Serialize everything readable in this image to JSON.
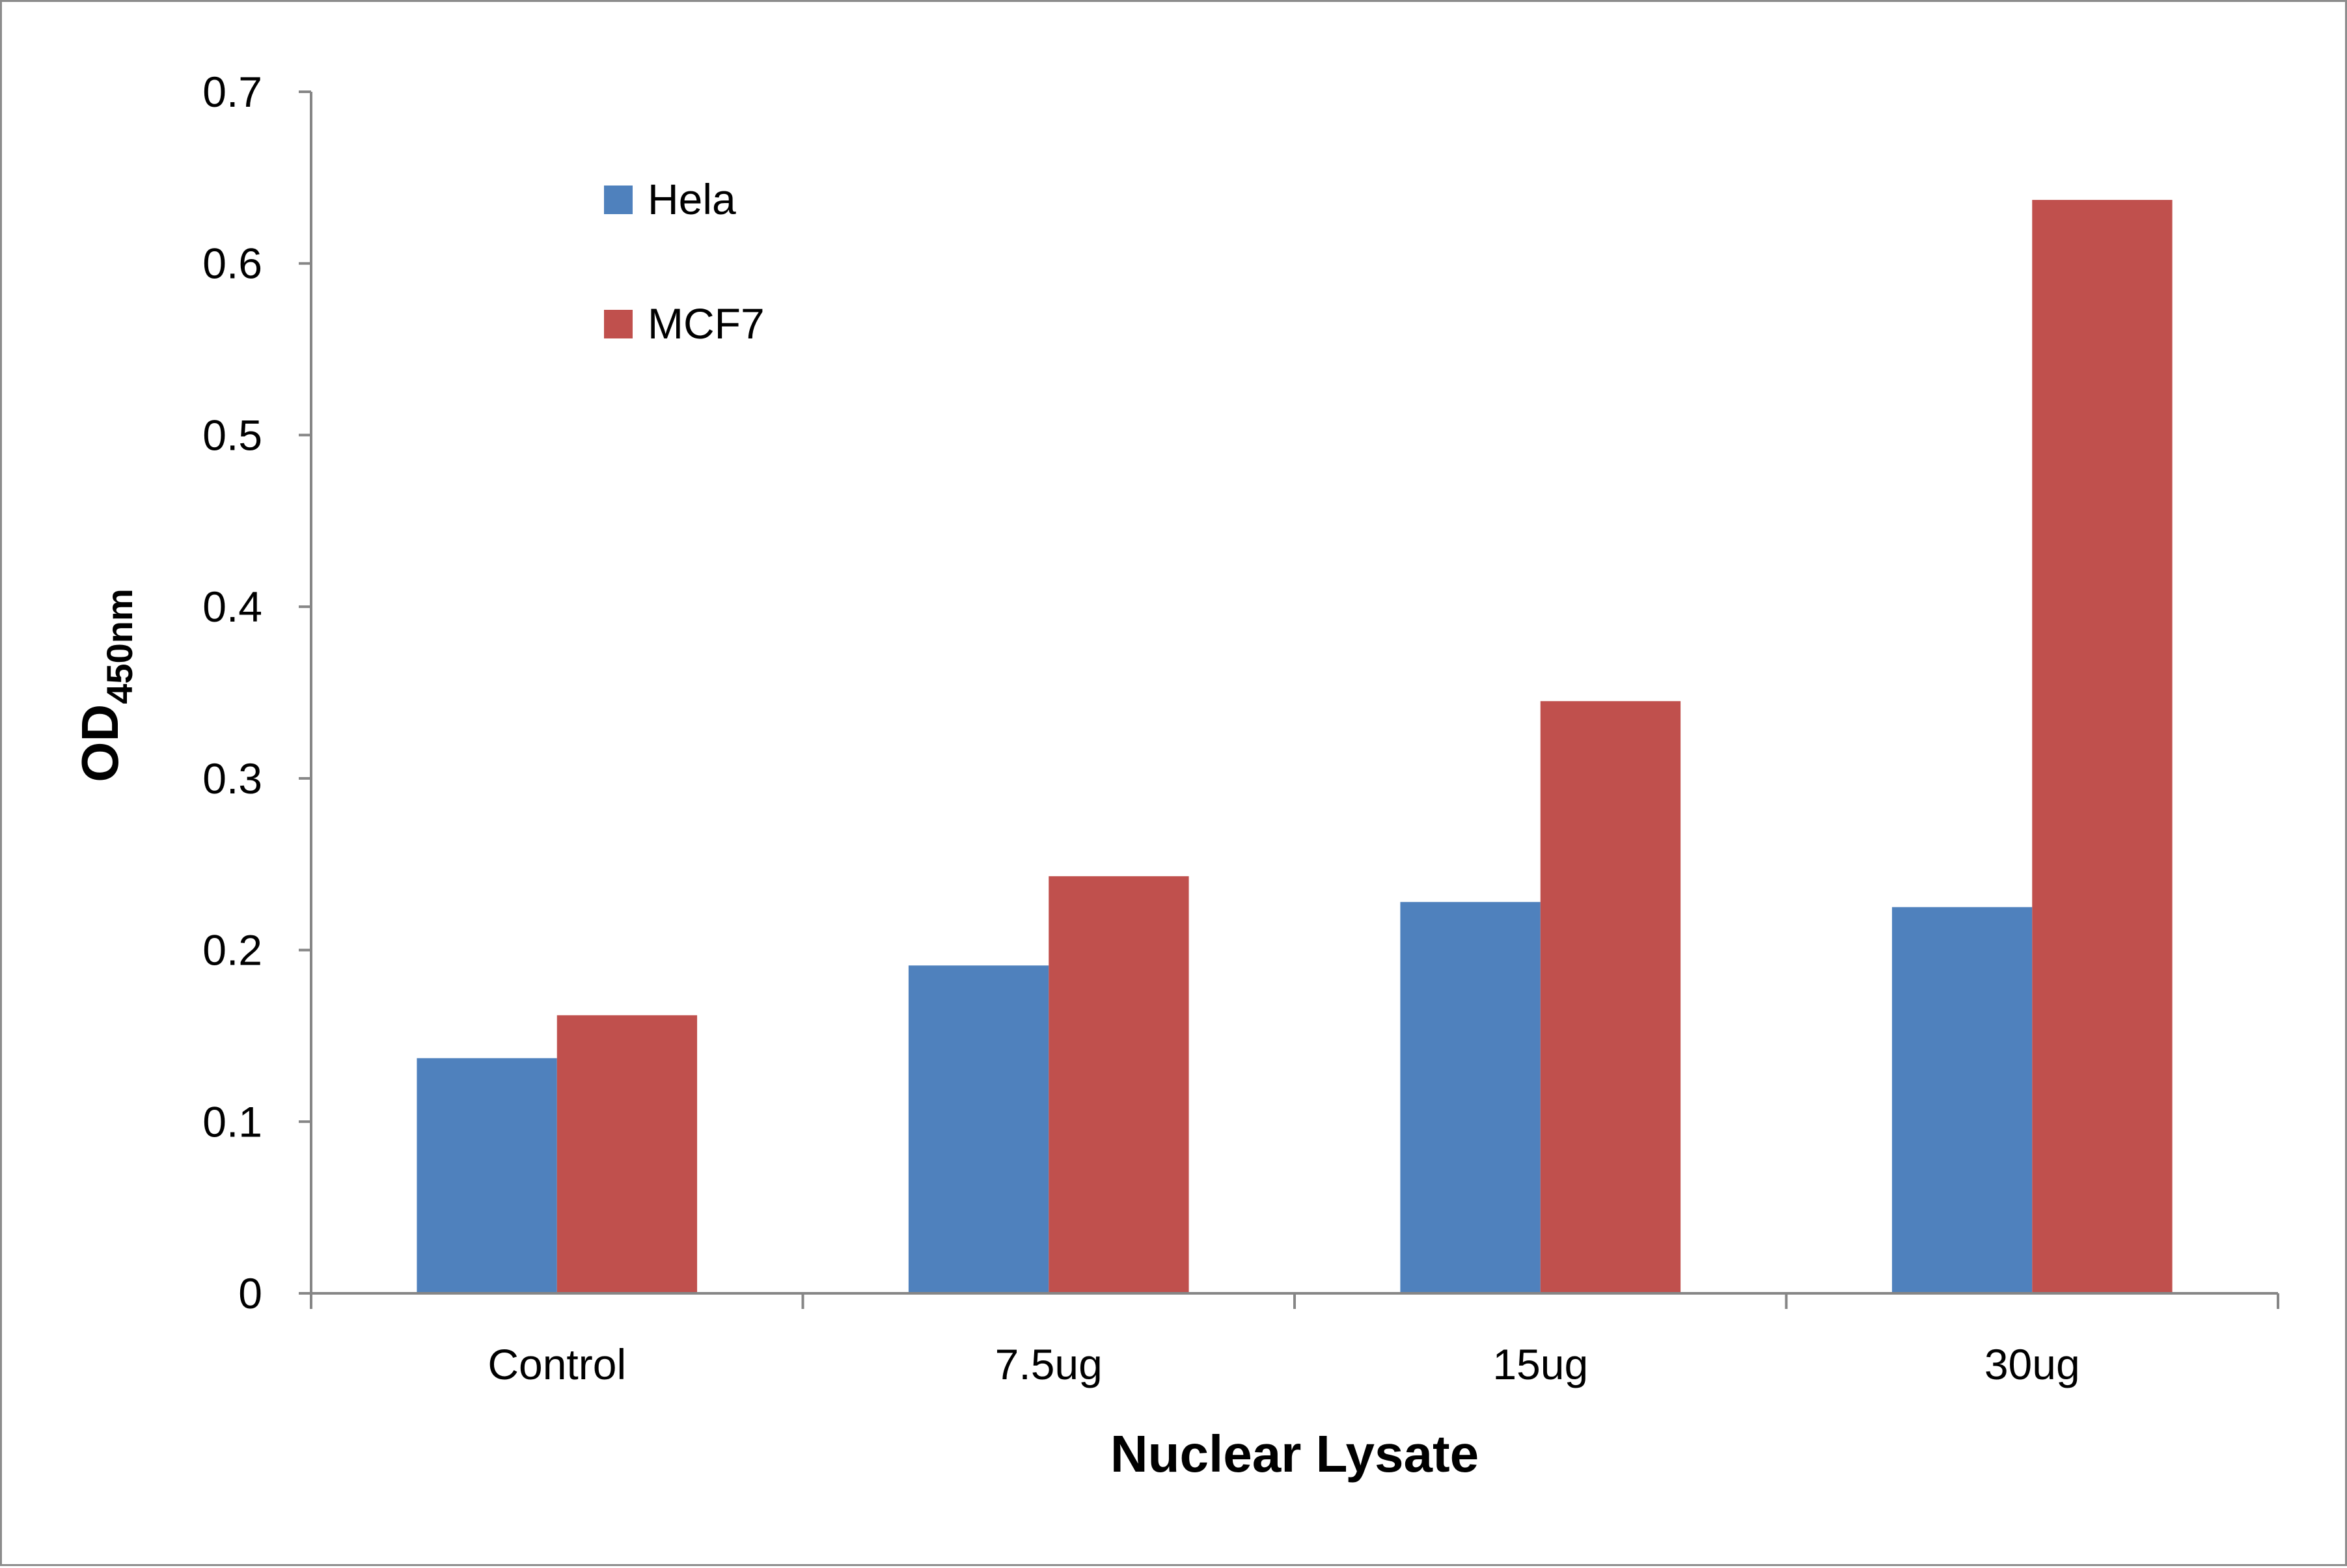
{
  "chart_data": {
    "type": "bar",
    "title": "",
    "xlabel": "Nuclear Lysate",
    "ylabel_main": "OD",
    "ylabel_sub": "450nm",
    "categories": [
      "Control",
      "7.5ug",
      "15ug",
      "30ug"
    ],
    "series": [
      {
        "name": "Hela",
        "color": "#4f81bd",
        "values": [
          0.137,
          0.191,
          0.228,
          0.225
        ]
      },
      {
        "name": "MCF7",
        "color": "#c0504d",
        "values": [
          0.162,
          0.243,
          0.345,
          0.637
        ]
      }
    ],
    "ylim": [
      0,
      0.7
    ],
    "yticks": [
      "0",
      "0.1",
      "0.2",
      "0.3",
      "0.4",
      "0.5",
      "0.6",
      "0.7"
    ],
    "grid": false,
    "legend_position": "top-left"
  }
}
